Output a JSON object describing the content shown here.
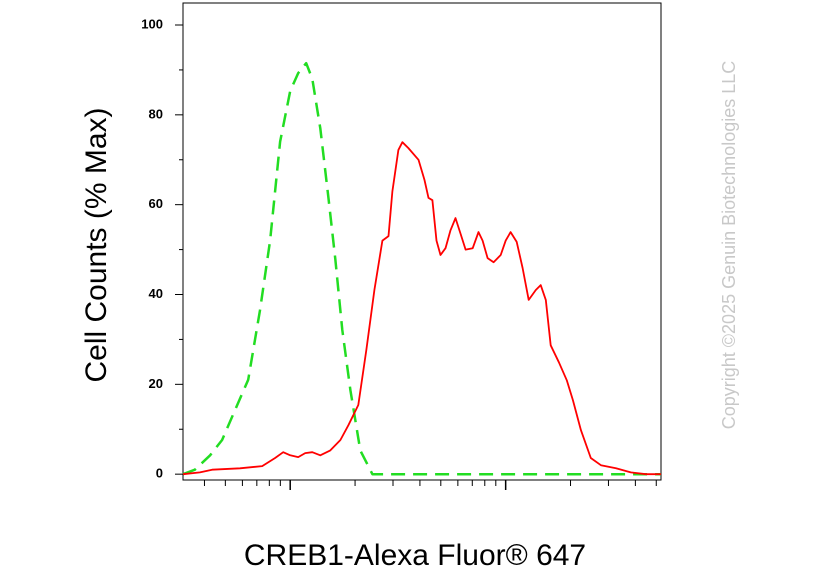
{
  "chart_data": {
    "type": "line",
    "x_label": "CREB1-Alexa Fluor® 647",
    "y_label": "Cell Counts (% Max)",
    "watermark": "Copyright ©2025 Genuin Biotechnologies LLC",
    "xscale": "log",
    "xlim": [
      31.8,
      5260
    ],
    "ylim": [
      -1.3,
      104.9
    ],
    "xticks": [
      40,
      50,
      60,
      70,
      80,
      90,
      100,
      200,
      300,
      400,
      500,
      600,
      700,
      800,
      900,
      1000,
      2000,
      3000,
      4000,
      5000
    ],
    "xmajor": [
      100,
      1000
    ],
    "yticks": [
      0,
      20,
      40,
      60,
      80,
      100
    ],
    "yminorticks": [
      10,
      30,
      50,
      70,
      90
    ],
    "series": [
      {
        "color": "#22dd22",
        "dash": true,
        "x": [
          31.8,
          36.1,
          42.5,
          48.3,
          55.5,
          63.8,
          72.4,
          80.7,
          89.8,
          100,
          108.9,
          118.7,
          126.6,
          138.0,
          150.4,
          161.9,
          174.5,
          190.2,
          211.6,
          240.6,
          276.6,
          5260
        ],
        "values": [
          0,
          1,
          4.2,
          7.6,
          14.3,
          21,
          36.5,
          52,
          74,
          85.3,
          89.3,
          91.5,
          88,
          77,
          61.6,
          47.9,
          32.1,
          18.7,
          5.3,
          0,
          0,
          0
        ]
      },
      {
        "color": "#ff0000",
        "dash": false,
        "x": [
          31.8,
          38.1,
          43.4,
          58.5,
          74.1,
          85.1,
          92.8,
          100,
          108.9,
          117.4,
          126.6,
          138.0,
          153.5,
          170.9,
          186.3,
          207.1,
          225.6,
          245.9,
          267.9,
          285.8,
          298.2,
          317.7,
          331.7,
          353.8,
          393.8,
          419.9,
          438.5,
          457.3,
          477.5,
          498.6,
          526.0,
          554.6,
          584.9,
          617.6,
          651.6,
          703.1,
          748.2,
          781.6,
          824.1,
          879.0,
          948.4,
          1000,
          1054,
          1125,
          1199,
          1279,
          1380,
          1455,
          1535,
          1618,
          1766,
          1923,
          2051,
          2234,
          2485,
          2767,
          3251,
          3811,
          4477,
          5260
        ],
        "values": [
          0,
          0.4,
          1,
          1.3,
          1.8,
          3.6,
          4.9,
          4.2,
          3.8,
          4.7,
          4.9,
          4.2,
          5.3,
          7.6,
          10.9,
          15.4,
          27.6,
          41,
          52,
          53,
          63,
          72.2,
          73.9,
          72.6,
          70,
          65.5,
          61.5,
          61,
          52,
          48.8,
          50.3,
          54.3,
          57,
          53.5,
          50,
          50.3,
          53.9,
          52,
          48.1,
          47.2,
          48.8,
          52,
          53.9,
          51.7,
          45.9,
          38.8,
          41,
          42.1,
          38.8,
          28.7,
          24.9,
          20.9,
          16.5,
          9.8,
          3.6,
          2,
          1.3,
          0.4,
          0,
          0
        ]
      }
    ]
  }
}
